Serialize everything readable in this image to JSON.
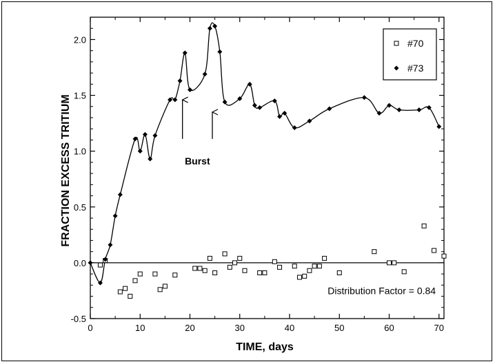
{
  "chart_data": {
    "type": "scatter",
    "xlabel": "TIME, days",
    "ylabel": "FRACTION EXCESS TRITIUM",
    "xlim": [
      0,
      71
    ],
    "ylim": [
      -0.5,
      2.2
    ],
    "x_ticks": [
      0,
      10,
      20,
      30,
      40,
      50,
      60,
      70
    ],
    "y_ticks": [
      -0.5,
      0.0,
      0.5,
      1.0,
      1.5,
      2.0
    ],
    "y_tick_labels": [
      "-0.5",
      "0.0",
      "0.5",
      "1.0",
      "1.5",
      "2.0"
    ],
    "grid": false,
    "legend_position": "top-right",
    "series": [
      {
        "name": "#70",
        "marker": "open-square",
        "color": "#000000",
        "x": [
          2,
          3,
          6,
          7,
          8,
          9,
          10,
          13,
          14,
          15,
          17,
          21,
          22,
          23,
          24,
          25,
          27,
          28,
          29,
          30,
          31,
          34,
          35,
          37,
          38,
          41,
          42,
          43,
          44,
          45,
          46,
          47,
          50,
          57,
          60,
          61,
          63,
          67,
          69,
          71
        ],
        "y": [
          -0.02,
          0.02,
          -0.26,
          -0.23,
          -0.3,
          -0.16,
          -0.1,
          -0.1,
          -0.24,
          -0.21,
          -0.11,
          -0.05,
          -0.05,
          -0.07,
          0.04,
          -0.09,
          0.08,
          -0.04,
          0.0,
          0.04,
          -0.07,
          -0.09,
          -0.09,
          0.01,
          -0.04,
          -0.03,
          -0.13,
          -0.12,
          -0.07,
          -0.03,
          -0.03,
          0.04,
          -0.09,
          0.1,
          0.0,
          0.0,
          -0.08,
          0.33,
          0.11,
          0.06
        ]
      },
      {
        "name": "#73",
        "marker": "filled-diamond",
        "color": "#000000",
        "x": [
          0,
          2,
          3,
          4,
          5,
          6,
          9,
          10,
          11,
          12,
          13,
          16,
          17,
          18,
          19,
          20,
          23,
          24,
          25,
          26,
          27,
          30,
          32,
          33,
          34,
          37,
          38,
          39,
          41,
          44,
          48,
          55,
          58,
          60,
          62,
          66,
          68,
          70
        ],
        "y": [
          0.0,
          -0.18,
          0.03,
          0.16,
          0.42,
          0.61,
          1.11,
          1.0,
          1.15,
          0.93,
          1.14,
          1.46,
          1.46,
          1.63,
          1.88,
          1.55,
          1.69,
          2.1,
          2.12,
          1.89,
          1.44,
          1.47,
          1.6,
          1.41,
          1.39,
          1.45,
          1.31,
          1.34,
          1.21,
          1.27,
          1.38,
          1.48,
          1.34,
          1.41,
          1.37,
          1.37,
          1.39,
          1.22
        ]
      }
    ],
    "reference_line": {
      "y": 0.0
    },
    "annotations": [
      {
        "text": "Burst",
        "x": 21.5,
        "y": 0.88
      },
      {
        "text": "Distribution Factor = 0.84",
        "x": 58.5,
        "y": -0.28
      }
    ],
    "arrows": [
      {
        "x": 18.5,
        "y_from": 1.11,
        "y_to": 1.46
      },
      {
        "x": 24.5,
        "y_from": 1.11,
        "y_to": 1.35
      }
    ]
  }
}
